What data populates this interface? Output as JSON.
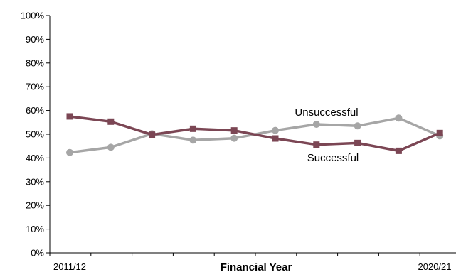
{
  "chart_data": {
    "type": "line",
    "title": "",
    "xlabel": "Financial Year",
    "ylabel": "",
    "ylim": [
      0,
      100
    ],
    "y_ticks": [
      "0%",
      "10%",
      "20%",
      "30%",
      "40%",
      "50%",
      "60%",
      "70%",
      "80%",
      "90%",
      "100%"
    ],
    "x_tick_labels": [
      "2011/12",
      "2020/21"
    ],
    "grid": false,
    "legend": "none",
    "series": [
      {
        "name": "Successful",
        "color": "#7b4654",
        "marker": "square",
        "values": [
          57.5,
          55.3,
          49.8,
          52.3,
          51.6,
          48.2,
          45.6,
          46.3,
          43.0,
          50.5
        ]
      },
      {
        "name": "Unsuccessful",
        "color": "#a6a6a6",
        "marker": "circle",
        "values": [
          42.3,
          44.5,
          50.2,
          47.5,
          48.3,
          51.6,
          54.2,
          53.5,
          56.8,
          49.3
        ]
      }
    ]
  }
}
